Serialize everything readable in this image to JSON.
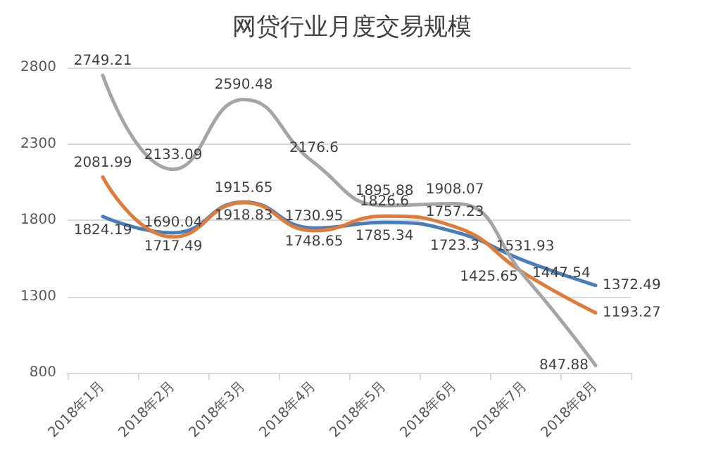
{
  "chart_data": {
    "type": "line",
    "title": "网贷行业月度交易规模",
    "categories": [
      "2018年1月",
      "2018年2月",
      "2018年3月",
      "2018年4月",
      "2018年5月",
      "2018年6月",
      "2018年7月",
      "2018年8月"
    ],
    "series": [
      {
        "color": "#4a7ebb",
        "values": [
          1824.19,
          1717.49,
          1918.83,
          1748.65,
          1785.34,
          1723.3,
          1531.93,
          1372.49
        ]
      },
      {
        "color": "#e07b39",
        "values": [
          2081.99,
          1690.04,
          1915.65,
          1730.95,
          1826.6,
          1757.23,
          1447.54,
          1193.27
        ]
      },
      {
        "color": "#a5a5a5",
        "values": [
          2749.21,
          2133.09,
          2590.48,
          2176.6,
          1895.88,
          1908.07,
          1425.65,
          847.88
        ]
      }
    ],
    "ylim": [
      800,
      2800
    ],
    "yticks": [
      800,
      1300,
      1800,
      2300,
      2800
    ],
    "grid": "y",
    "data_labels": true,
    "marker": "none",
    "line_style": "solid"
  }
}
